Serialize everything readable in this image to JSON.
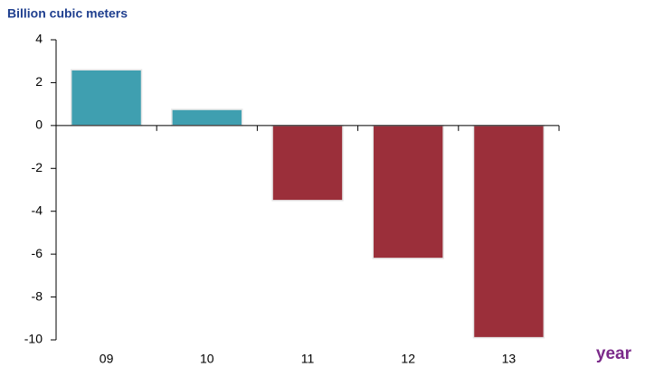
{
  "chart_data": {
    "type": "bar",
    "y_axis_label": "Billion cubic meters",
    "x_axis_label": "year",
    "categories": [
      "09",
      "10",
      "11",
      "12",
      "13"
    ],
    "values": [
      2.6,
      0.75,
      -3.5,
      -6.2,
      -9.9
    ],
    "positive_color": "#3f9fb0",
    "negative_color": "#9b2f3a",
    "ylim": [
      -10,
      4
    ],
    "yticks": [
      -10,
      -8,
      -6,
      -4,
      -2,
      0,
      2,
      4
    ],
    "grid": false
  }
}
